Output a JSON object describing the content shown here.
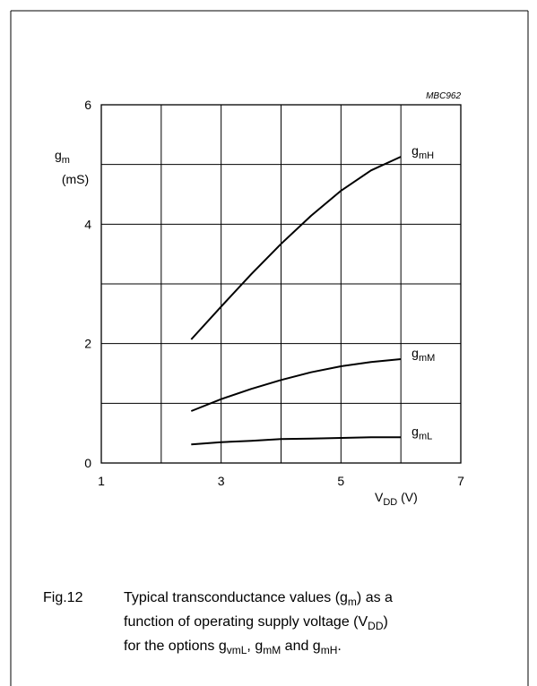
{
  "chart_data": {
    "type": "line",
    "code": "MBC962",
    "y_label": [
      {
        "t": "g"
      },
      {
        "sub": "m"
      }
    ],
    "y_unit": "(mS)",
    "x_label": [
      {
        "t": "V"
      },
      {
        "sub": "DD"
      },
      {
        "t": " (V)"
      }
    ],
    "xlim": [
      1,
      7
    ],
    "ylim": [
      0,
      6
    ],
    "xticks": [
      1,
      3,
      5,
      7
    ],
    "yticks": [
      0,
      2,
      4,
      6
    ],
    "xgrid": [
      1,
      2,
      3,
      4,
      5,
      6,
      7
    ],
    "ygrid": [
      0,
      1,
      2,
      3,
      4,
      5,
      6
    ],
    "x": [
      2.5,
      3,
      3.5,
      4,
      4.5,
      5,
      5.5,
      6
    ],
    "series": [
      {
        "label": [
          {
            "t": "g"
          },
          {
            "sub": "mH"
          }
        ],
        "color": "#000000",
        "values": [
          2.07,
          2.62,
          3.16,
          3.67,
          4.14,
          4.56,
          4.9,
          5.13
        ]
      },
      {
        "label": [
          {
            "t": "g"
          },
          {
            "sub": "mM"
          }
        ],
        "color": "#000000",
        "values": [
          0.87,
          1.07,
          1.24,
          1.39,
          1.52,
          1.62,
          1.69,
          1.74
        ]
      },
      {
        "label": [
          {
            "t": "g"
          },
          {
            "sub": "mL"
          }
        ],
        "color": "#000000",
        "values": [
          0.31,
          0.35,
          0.37,
          0.4,
          0.41,
          0.42,
          0.43,
          0.43
        ]
      }
    ]
  },
  "caption": {
    "figure": "Fig.12",
    "lines": [
      [
        {
          "t": "Typical transconductance values (g"
        },
        {
          "sub": "m"
        },
        {
          "t": ") as a"
        }
      ],
      [
        {
          "t": "function of operating supply voltage (V"
        },
        {
          "sub": "DD"
        },
        {
          "t": ")"
        }
      ],
      [
        {
          "t": "for the options g"
        },
        {
          "sub": "vmL"
        },
        {
          "t": ", g"
        },
        {
          "sub": "mM"
        },
        {
          "t": " and g"
        },
        {
          "sub": "mH"
        },
        {
          "t": "."
        }
      ]
    ]
  }
}
